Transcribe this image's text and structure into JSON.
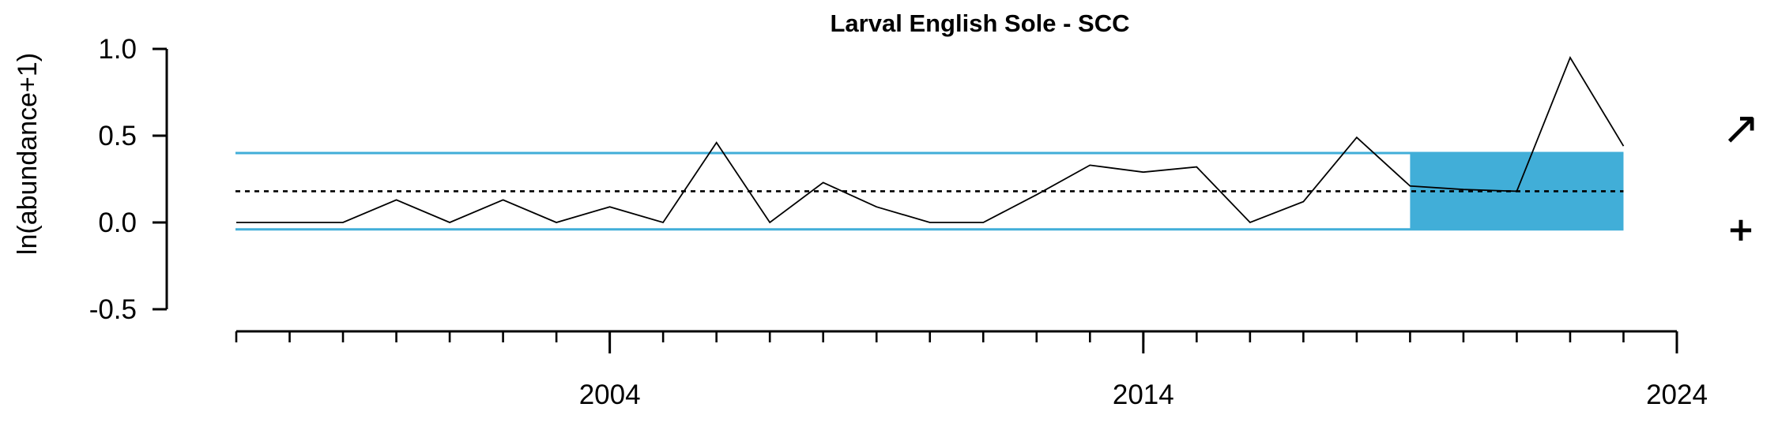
{
  "chart_data": {
    "type": "line",
    "title": "Larval English Sole - SCC",
    "xlabel": "",
    "ylabel": "ln(abundance+1)",
    "x_tick_labels": [
      "2004",
      "2014",
      "2024"
    ],
    "y_tick_labels": [
      "1.0",
      "0.5",
      "0.0",
      "-0.5"
    ],
    "xlim": [
      1997,
      2024
    ],
    "ylim": [
      -0.5,
      1.0
    ],
    "x_minor_ticks_every": 1,
    "grid": false,
    "series": [
      {
        "color": "#000000",
        "x": [
          1997,
          1998,
          1999,
          2000,
          2001,
          2002,
          2003,
          2004,
          2005,
          2006,
          2007,
          2008,
          2009,
          2010,
          2011,
          2012,
          2013,
          2014,
          2015,
          2016,
          2017,
          2018,
          2019,
          2020,
          2021,
          2022,
          2023
        ],
        "values": [
          0.0,
          0.0,
          0.0,
          0.13,
          0.0,
          0.13,
          0.0,
          0.09,
          0.0,
          0.46,
          0.0,
          0.23,
          0.09,
          0.0,
          0.0,
          0.16,
          0.33,
          0.29,
          0.32,
          0.0,
          0.12,
          0.49,
          0.21,
          0.19,
          0.18,
          0.95,
          0.44
        ]
      }
    ],
    "mean": 0.18,
    "upper_sd": 0.4,
    "lower_sd": -0.04,
    "recent_window": [
      2019,
      2023
    ],
    "colors": {
      "line": "#000000",
      "sd_lines": "#41aed8",
      "recent_fill": "#41aed8",
      "mean_line": "#000000"
    },
    "trend_symbol": "↗",
    "mean_symbol": "+"
  }
}
